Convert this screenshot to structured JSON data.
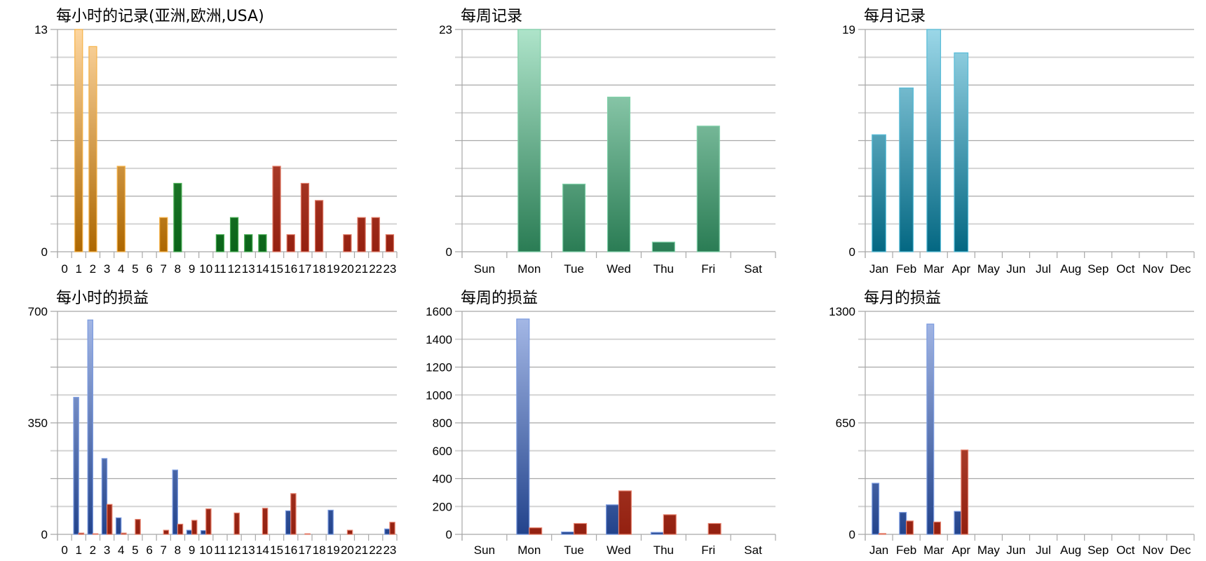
{
  "palette": {
    "orange": [
      "#fdd6a0",
      "#ad6700",
      "#f6b348"
    ],
    "green": [
      "#3f9444",
      "#0a6419",
      "#4aae55"
    ],
    "red": [
      "#c4624c",
      "#952010",
      "#e07a66"
    ],
    "mint": [
      "#aee4ca",
      "#2a7c54",
      "#7fd0a8"
    ],
    "teal": [
      "#9bd7e8",
      "#036782",
      "#56bcd8"
    ],
    "blue": [
      "#a8bbe8",
      "#22438c",
      "#7b9be0"
    ],
    "pl_red": [
      "#c8664f",
      "#932010",
      "#e6806c"
    ]
  },
  "chart_data": [
    {
      "type": "bar",
      "title": "每小时的记录(亚洲,欧洲,USA)",
      "categories": [
        "0",
        "1",
        "2",
        "3",
        "4",
        "5",
        "6",
        "7",
        "8",
        "9",
        "10",
        "11",
        "12",
        "13",
        "14",
        "15",
        "16",
        "17",
        "18",
        "19",
        "20",
        "21",
        "22",
        "23"
      ],
      "series": [
        {
          "values": [
            0,
            13,
            12,
            0,
            5,
            0,
            0,
            2,
            4,
            0,
            0,
            1,
            2,
            1,
            1,
            5,
            1,
            4,
            3,
            0,
            1,
            2,
            2,
            1
          ],
          "bar_colors": [
            "orange",
            "orange",
            "orange",
            "orange",
            "orange",
            "orange",
            "orange",
            "orange",
            "green",
            "green",
            "green",
            "green",
            "green",
            "green",
            "green",
            "red",
            "red",
            "red",
            "red",
            "red",
            "red",
            "red",
            "red",
            "red"
          ]
        }
      ],
      "ylim": [
        0,
        13
      ],
      "yticks": [
        0,
        13
      ],
      "grid_intervals": 8
    },
    {
      "type": "bar",
      "title": "每周记录",
      "categories": [
        "Sun",
        "Mon",
        "Tue",
        "Wed",
        "Thu",
        "Fri",
        "Sat"
      ],
      "series": [
        {
          "values": [
            0,
            23,
            7,
            16,
            1,
            13,
            0
          ],
          "color": "mint"
        }
      ],
      "ylim": [
        0,
        23
      ],
      "yticks": [
        0,
        23
      ],
      "grid_intervals": 8
    },
    {
      "type": "bar",
      "title": "每月记录",
      "categories": [
        "Jan",
        "Feb",
        "Mar",
        "Apr",
        "May",
        "Jun",
        "Jul",
        "Aug",
        "Sep",
        "Oct",
        "Nov",
        "Dec"
      ],
      "series": [
        {
          "values": [
            10,
            14,
            19,
            17,
            0,
            0,
            0,
            0,
            0,
            0,
            0,
            0
          ],
          "color": "teal"
        }
      ],
      "ylim": [
        0,
        19
      ],
      "yticks": [
        0,
        19
      ],
      "grid_intervals": 8
    },
    {
      "type": "bar",
      "title": "每小时的损益",
      "categories": [
        "0",
        "1",
        "2",
        "3",
        "4",
        "5",
        "6",
        "7",
        "8",
        "9",
        "10",
        "11",
        "12",
        "13",
        "14",
        "15",
        "16",
        "17",
        "18",
        "19",
        "20",
        "21",
        "22",
        "23"
      ],
      "series": [
        {
          "values": [
            0,
            430,
            673,
            238,
            52,
            0,
            0,
            0,
            202,
            13,
            12,
            0,
            0,
            0,
            0,
            0,
            74,
            0,
            0,
            76,
            0,
            0,
            0,
            17
          ],
          "color": "blue"
        },
        {
          "values": [
            0,
            4,
            2,
            94,
            4,
            47,
            0,
            13,
            32,
            44,
            80,
            0,
            67,
            0,
            82,
            0,
            128,
            2,
            0,
            0,
            13,
            0,
            0,
            38
          ],
          "color": "pl_red"
        }
      ],
      "ylim": [
        0,
        700
      ],
      "yticks": [
        0,
        350,
        700
      ],
      "grid_intervals": 8
    },
    {
      "type": "bar",
      "title": "每周的损益",
      "categories": [
        "Sun",
        "Mon",
        "Tue",
        "Wed",
        "Thu",
        "Fri",
        "Sat"
      ],
      "series": [
        {
          "values": [
            0,
            1545,
            17,
            212,
            14,
            0,
            0
          ],
          "color": "blue"
        },
        {
          "values": [
            0,
            47,
            78,
            312,
            141,
            78,
            0
          ],
          "color": "pl_red"
        }
      ],
      "ylim": [
        0,
        1600
      ],
      "yticks": [
        0,
        200,
        400,
        600,
        800,
        1000,
        1200,
        1400,
        1600
      ],
      "grid_intervals": 8
    },
    {
      "type": "bar",
      "title": "每月的损益",
      "categories": [
        "Jan",
        "Feb",
        "Mar",
        "Apr",
        "May",
        "Jun",
        "Jul",
        "Aug",
        "Sep",
        "Oct",
        "Nov",
        "Dec"
      ],
      "series": [
        {
          "values": [
            298,
            128,
            1226,
            134,
            0,
            0,
            0,
            0,
            0,
            0,
            0,
            0
          ],
          "color": "blue"
        },
        {
          "values": [
            5,
            78,
            72,
            492,
            0,
            0,
            0,
            0,
            0,
            0,
            0,
            0
          ],
          "color": "pl_red"
        }
      ],
      "ylim": [
        0,
        1300
      ],
      "yticks": [
        0,
        650,
        1300
      ],
      "grid_intervals": 8
    }
  ]
}
